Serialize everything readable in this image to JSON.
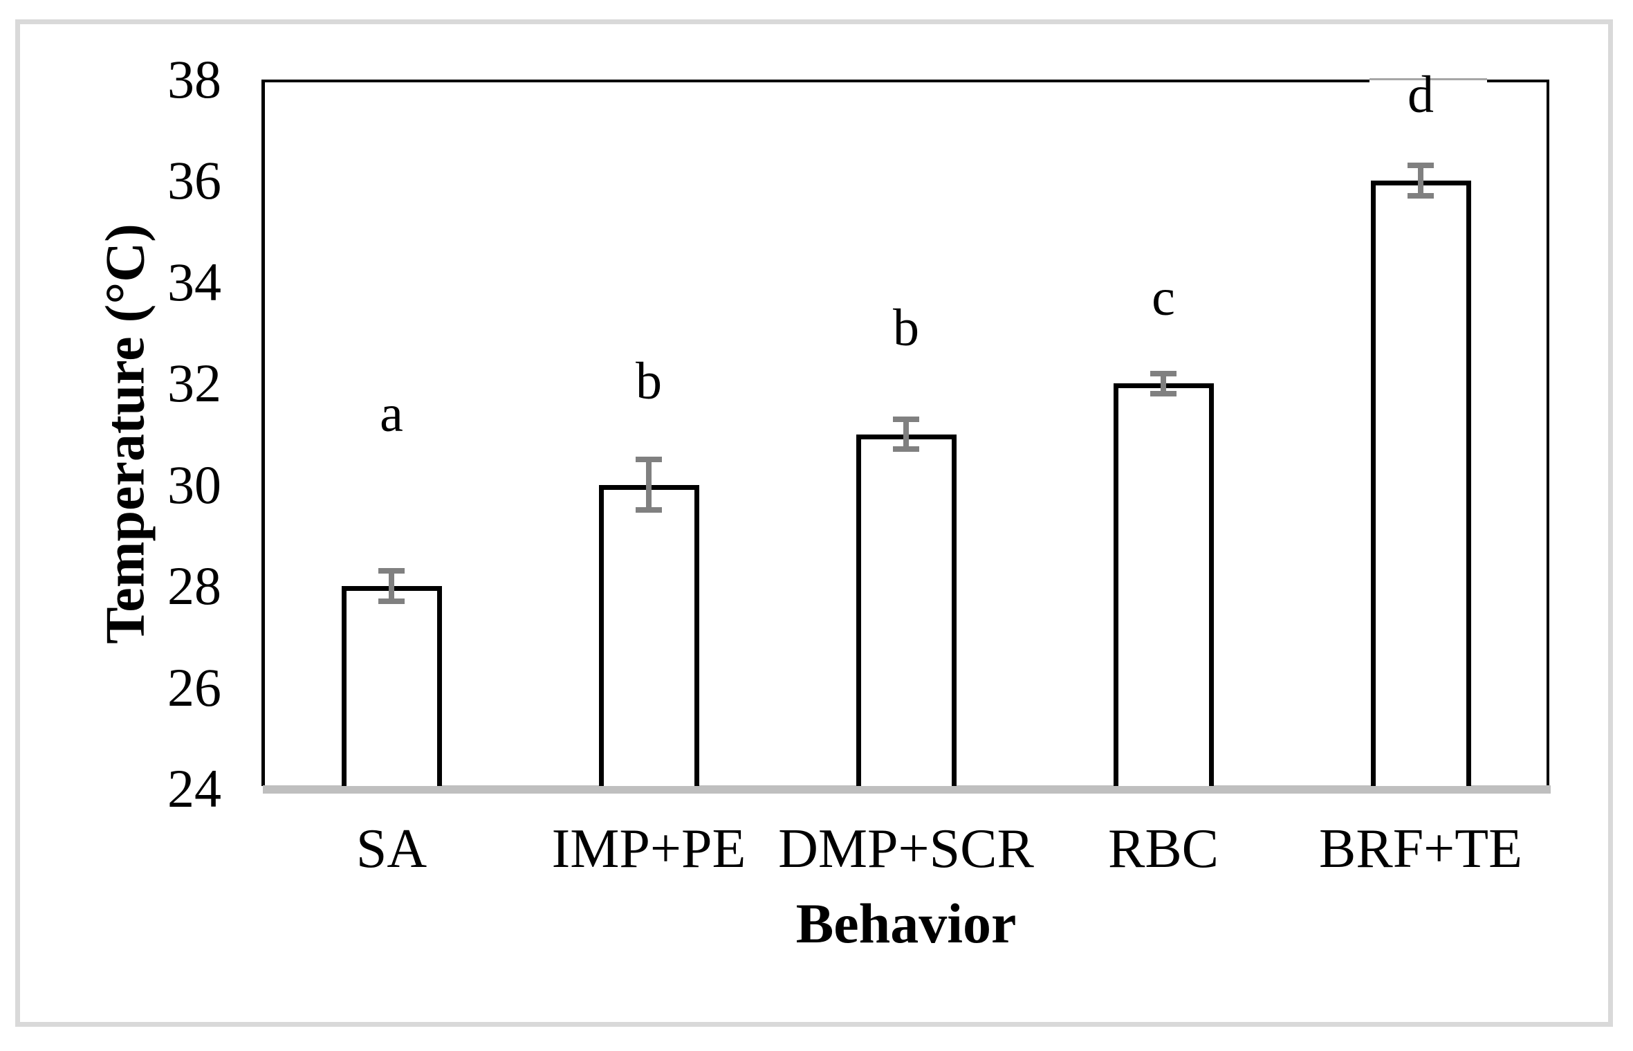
{
  "chart_data": {
    "type": "bar",
    "title": "",
    "xlabel": "Behavior",
    "ylabel": "Temperature (°C)",
    "categories": [
      "SA",
      "IMP+PE",
      "DMP+SCR",
      "RBC",
      "BRF+TE"
    ],
    "values": [
      28,
      30,
      31,
      32,
      36
    ],
    "errors": [
      0.3,
      0.5,
      0.3,
      0.2,
      0.3
    ],
    "sig_letters": [
      "a",
      "b",
      "b",
      "c",
      "d"
    ],
    "sig_letter_y": [
      31.4,
      32.05,
      33.1,
      33.7,
      37.7
    ],
    "ylim": [
      24,
      38
    ],
    "yticks": [
      24,
      26,
      28,
      30,
      32,
      34,
      36,
      38
    ],
    "grid": false,
    "legend": "none",
    "colors": {
      "bar_fill": "#ffffff",
      "bar_border": "#000000",
      "error_bar": "#808080",
      "baseline": "#bfbfbf",
      "plot_border": "#000000",
      "figure_frame": "#d9d9d9",
      "text": "#000000"
    }
  }
}
